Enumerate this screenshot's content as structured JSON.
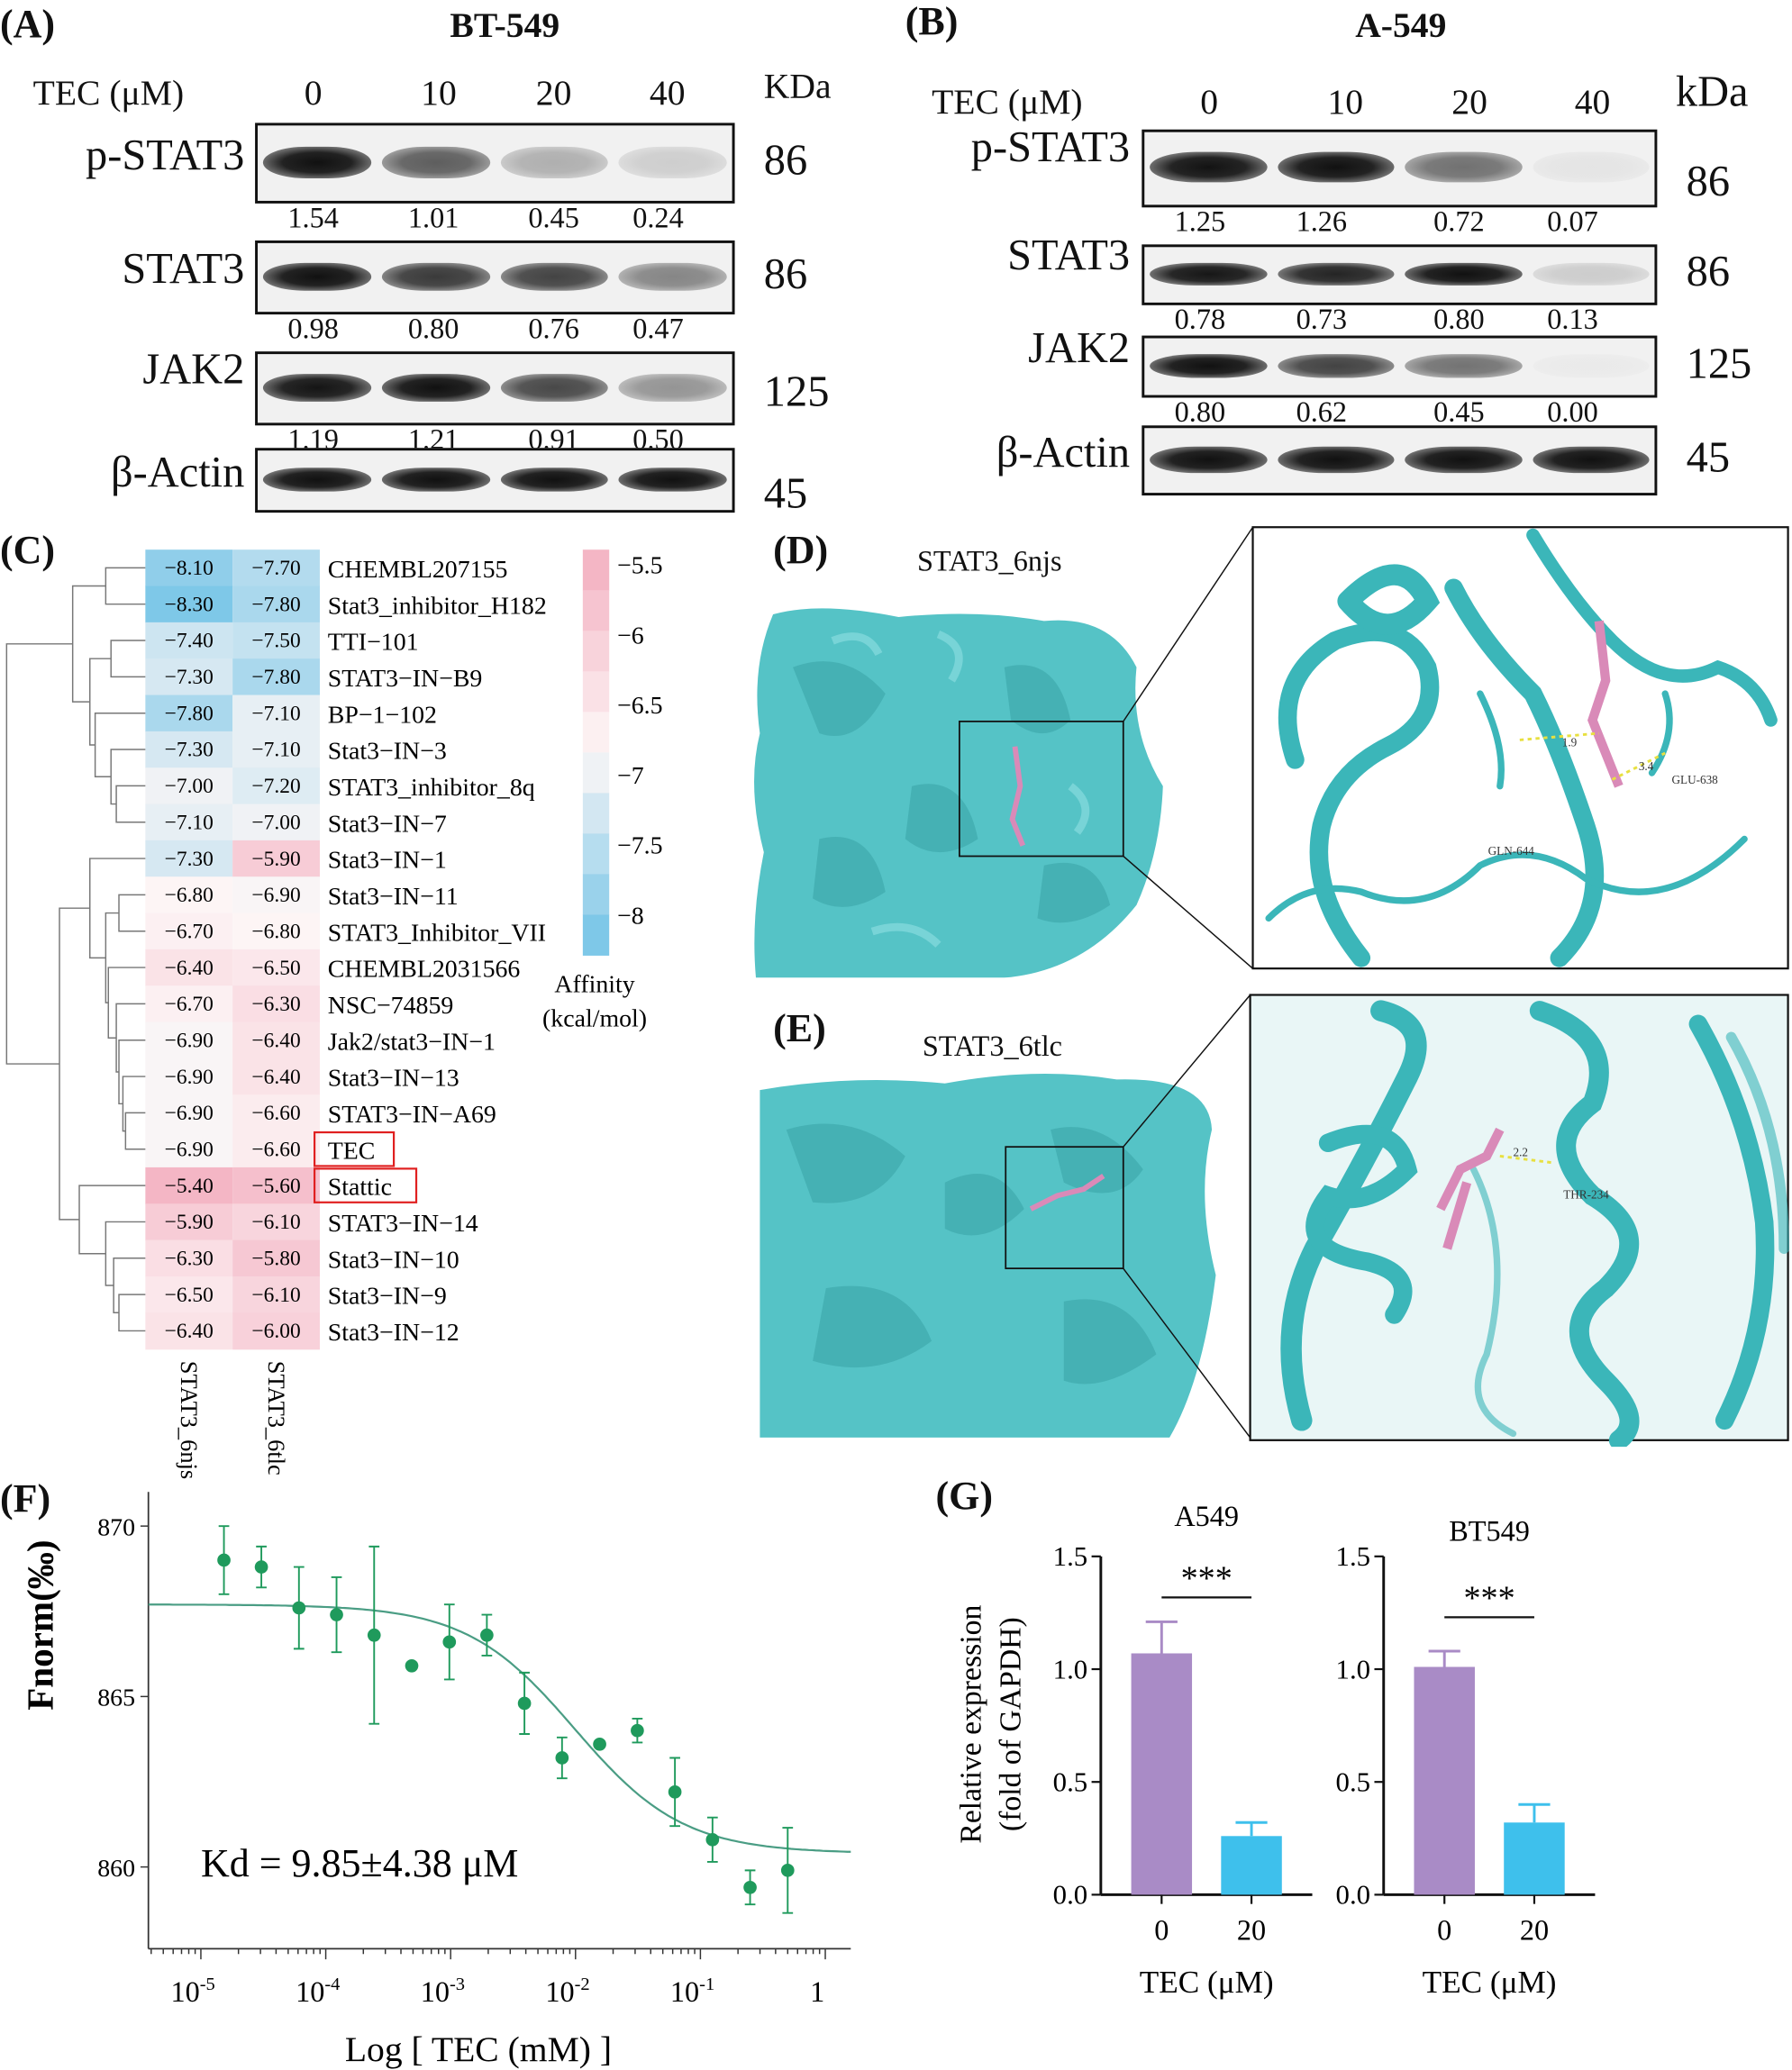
{
  "panel_a": {
    "label": "(A)",
    "title": "BT-549",
    "treatment_label": "TEC (μM)",
    "concentrations": [
      "0",
      "10",
      "20",
      "40"
    ],
    "mw_unit": "KDa",
    "blots": [
      {
        "protein": "p-STAT3",
        "kda": "86",
        "quant": [
          "1.54",
          "1.01",
          "0.45",
          "0.24"
        ]
      },
      {
        "protein": "STAT3",
        "kda": "86",
        "quant": [
          "0.98",
          "0.80",
          "0.76",
          "0.47"
        ]
      },
      {
        "protein": "JAK2",
        "kda": "125",
        "quant": [
          "1.19",
          "1.21",
          "0.91",
          "0.50"
        ]
      },
      {
        "protein": "β-Actin",
        "kda": "45",
        "quant": []
      }
    ]
  },
  "panel_b": {
    "label": "(B)",
    "title": "A-549",
    "treatment_label": "TEC (μM)",
    "concentrations": [
      "0",
      "10",
      "20",
      "40"
    ],
    "mw_unit": "kDa",
    "blots": [
      {
        "protein": "p-STAT3",
        "kda": "86",
        "quant": [
          "1.25",
          "1.26",
          "0.72",
          "0.07"
        ]
      },
      {
        "protein": "STAT3",
        "kda": "86",
        "quant": [
          "0.78",
          "0.73",
          "0.80",
          "0.13"
        ]
      },
      {
        "protein": "JAK2",
        "kda": "125",
        "quant": [
          "0.80",
          "0.62",
          "0.45",
          "0.00"
        ]
      },
      {
        "protein": "β-Actin",
        "kda": "45",
        "quant": []
      }
    ]
  },
  "panel_c": {
    "label": "(C)"
  },
  "panel_d": {
    "label": "(D)",
    "title": "STAT3_6njs",
    "annotations": [
      "1.9",
      "3.4",
      "GLU-638",
      "GLN-644"
    ]
  },
  "panel_e": {
    "label": "(E)",
    "title": "STAT3_6tlc",
    "annotations": [
      "2.2",
      "THR-234"
    ]
  },
  "panel_f": {
    "label": "(F)"
  },
  "panel_g": {
    "label": "(G)"
  },
  "colors": {
    "heat_low": "#7ec8e8",
    "heat_mid": "#fdf7f7",
    "heat_high": "#f4b6c5",
    "fit_line": "#4a9d84",
    "points": "#1f9a5c",
    "bar_control": "#a98bc6",
    "bar_treated": "#3ec0ec",
    "protein": "#4fc3c6",
    "ligand": "#d98ab8",
    "highlight_box": "#e02020"
  },
  "chart_data": [
    {
      "type": "heatmap",
      "columns": [
        "STAT3_6njs",
        "STAT3_6tlc"
      ],
      "rows": [
        "CHEMBL207155",
        "Stat3_inhibitor_H182",
        "TTI−101",
        "STAT3−IN−B9",
        "BP−1−102",
        "Stat3−IN−3",
        "STAT3_inhibitor_8q",
        "Stat3−IN−7",
        "Stat3−IN−1",
        "Stat3−IN−11",
        "STAT3_Inhibitor_VII",
        "CHEMBL2031566",
        "NSC−74859",
        "Jak2/stat3−IN−1",
        "Stat3−IN−13",
        "STAT3−IN−A69",
        "TEC",
        "Stattic",
        "STAT3−IN−14",
        "Stat3−IN−10",
        "Stat3−IN−9",
        "Stat3−IN−12"
      ],
      "values": [
        [
          -8.1,
          -7.7
        ],
        [
          -8.3,
          -7.8
        ],
        [
          -7.4,
          -7.5
        ],
        [
          -7.3,
          -7.8
        ],
        [
          -7.8,
          -7.1
        ],
        [
          -7.3,
          -7.1
        ],
        [
          -7.0,
          -7.2
        ],
        [
          -7.1,
          -7.0
        ],
        [
          -7.3,
          -5.9
        ],
        [
          -6.8,
          -6.9
        ],
        [
          -6.7,
          -6.8
        ],
        [
          -6.4,
          -6.5
        ],
        [
          -6.7,
          -6.3
        ],
        [
          -6.9,
          -6.4
        ],
        [
          -6.9,
          -6.4
        ],
        [
          -6.9,
          -6.6
        ],
        [
          -6.9,
          -6.6
        ],
        [
          -5.4,
          -5.6
        ],
        [
          -5.9,
          -6.1
        ],
        [
          -6.3,
          -5.8
        ],
        [
          -6.5,
          -6.1
        ],
        [
          -6.4,
          -6.0
        ]
      ],
      "highlighted_rows": [
        "TEC",
        "Stattic"
      ],
      "colorbar": {
        "ticks": [
          "−5.5",
          "−6",
          "−6.5",
          "−7",
          "−7.5",
          "−8"
        ],
        "range": [
          -8.3,
          -5.4
        ],
        "title_line1": "Affinity",
        "title_line2": "(kcal/mol)"
      },
      "dendrogram": "rows, left"
    },
    {
      "type": "scatter",
      "xlabel": "Log [ TEC (mM) ]",
      "ylabel": "Fnorm(‰)",
      "xscale": "log",
      "xlim": [
        3.8e-06,
        1.6
      ],
      "ylim": [
        857.6,
        871
      ],
      "xticks": [
        {
          "base": "10",
          "exp": "-5"
        },
        {
          "base": "10",
          "exp": "-4"
        },
        {
          "base": "10",
          "exp": "-3"
        },
        {
          "base": "10",
          "exp": "-2"
        },
        {
          "base": "10",
          "exp": "-1"
        },
        {
          "base": "1",
          "exp": ""
        }
      ],
      "yticks": [
        "870",
        "865",
        "860"
      ],
      "annotation": "Kd = 9.85±4.38 μM",
      "x": [
        1.53e-05,
        3.05e-05,
        6.1e-05,
        0.000122,
        0.000244,
        0.000488,
        0.000977,
        0.00195,
        0.0039,
        0.0078,
        0.0156,
        0.03125,
        0.0625,
        0.125,
        0.25,
        0.5
      ],
      "y": [
        869.0,
        868.8,
        867.6,
        867.4,
        866.8,
        865.9,
        866.6,
        866.8,
        864.8,
        863.2,
        863.6,
        864.0,
        862.2,
        860.8,
        859.4,
        859.9
      ],
      "error": [
        1.0,
        0.6,
        1.2,
        1.1,
        2.6,
        0,
        1.1,
        0.6,
        0.9,
        0.6,
        0,
        0.35,
        1.0,
        0.65,
        0.5,
        1.25
      ],
      "fit": {
        "top": 867.7,
        "bottom": 860.4,
        "kd_mM": 0.00985
      }
    },
    {
      "type": "bar",
      "title": "A549",
      "categories": [
        "0",
        "20"
      ],
      "values": [
        1.07,
        0.26
      ],
      "error": [
        0.14,
        0.06
      ],
      "xlabel": "TEC (μM)",
      "ylabel_line1": "Relative expression",
      "ylabel_line2": "(fold of GAPDH)",
      "ylim": [
        0,
        1.5
      ],
      "yticks": [
        "0.0",
        "0.5",
        "1.0",
        "1.5"
      ],
      "significance": "***"
    },
    {
      "type": "bar",
      "title": "BT549",
      "categories": [
        "0",
        "20"
      ],
      "values": [
        1.01,
        0.32
      ],
      "error": [
        0.07,
        0.08
      ],
      "xlabel": "TEC (μM)",
      "ylim": [
        0,
        1.5
      ],
      "yticks": [
        "0.0",
        "0.5",
        "1.0",
        "1.5"
      ],
      "significance": "***"
    }
  ]
}
